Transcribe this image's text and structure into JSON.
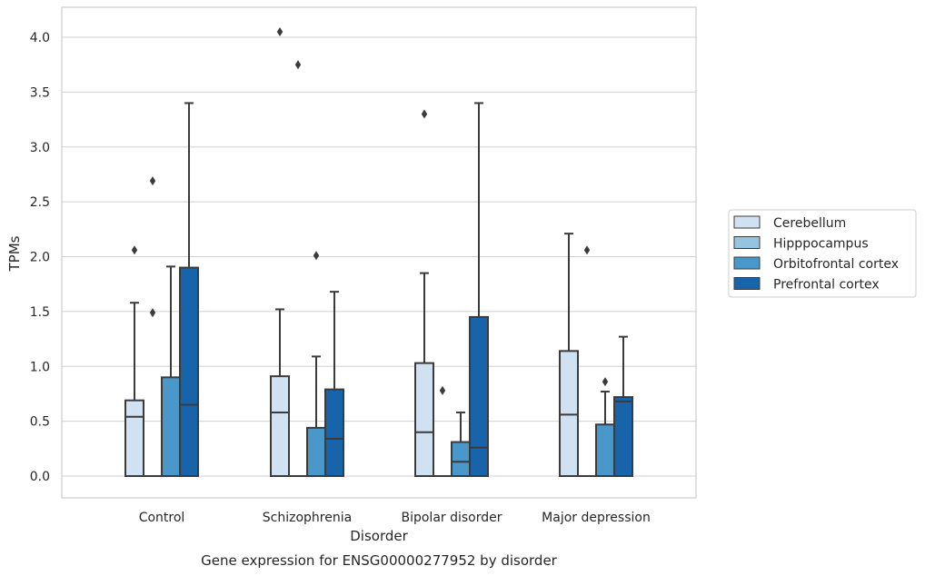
{
  "chart_data": {
    "type": "box",
    "xlabel": "Disorder",
    "ylabel": "TPMs",
    "caption": "Gene expression for ENSG00000277952 by disorder",
    "ylim": [
      -0.2,
      4.25
    ],
    "yticks": [
      "0.0",
      "0.5",
      "1.0",
      "1.5",
      "2.0",
      "2.5",
      "3.0",
      "3.5",
      "4.0"
    ],
    "grid": true,
    "legend_position": "right",
    "categories": [
      "Control",
      "Schizophrenia",
      "Bipolar disorder",
      "Major depression"
    ],
    "series": [
      {
        "name": "Cerebellum",
        "color": "#d0e1f2",
        "boxes": [
          {
            "whislo": 0.0,
            "q1": 0.0,
            "med": 0.54,
            "q3": 0.69,
            "whishi": 1.58,
            "fliers": [
              2.06
            ]
          },
          {
            "whislo": 0.0,
            "q1": 0.0,
            "med": 0.58,
            "q3": 0.91,
            "whishi": 1.52,
            "fliers": [
              4.05
            ]
          },
          {
            "whislo": 0.0,
            "q1": 0.0,
            "med": 0.4,
            "q3": 1.03,
            "whishi": 1.85,
            "fliers": [
              3.3
            ]
          },
          {
            "whislo": 0.0,
            "q1": 0.0,
            "med": 0.56,
            "q3": 1.14,
            "whishi": 2.21,
            "fliers": []
          }
        ]
      },
      {
        "name": "Hipppocampus",
        "color": "#94c4df",
        "boxes": [
          {
            "whislo": 0.0,
            "q1": 0.0,
            "med": 0.0,
            "q3": 0.0,
            "whishi": 0.0,
            "fliers": [
              2.69,
              1.49
            ]
          },
          {
            "whislo": 0.0,
            "q1": 0.0,
            "med": 0.0,
            "q3": 0.0,
            "whishi": 0.0,
            "fliers": [
              3.75
            ]
          },
          {
            "whislo": 0.0,
            "q1": 0.0,
            "med": 0.0,
            "q3": 0.0,
            "whishi": 0.0,
            "fliers": [
              0.78
            ]
          },
          {
            "whislo": 0.0,
            "q1": 0.0,
            "med": 0.0,
            "q3": 0.0,
            "whishi": 0.0,
            "fliers": [
              2.06
            ]
          }
        ]
      },
      {
        "name": "Orbitofrontal cortex",
        "color": "#4a98c9",
        "boxes": [
          {
            "whislo": 0.0,
            "q1": 0.0,
            "med": 0.0,
            "q3": 0.9,
            "whishi": 1.91,
            "fliers": []
          },
          {
            "whislo": 0.0,
            "q1": 0.0,
            "med": 0.0,
            "q3": 0.44,
            "whishi": 1.09,
            "fliers": [
              2.01
            ]
          },
          {
            "whislo": 0.0,
            "q1": 0.0,
            "med": 0.13,
            "q3": 0.31,
            "whishi": 0.58,
            "fliers": []
          },
          {
            "whislo": 0.0,
            "q1": 0.0,
            "med": 0.0,
            "q3": 0.47,
            "whishi": 0.77,
            "fliers": [
              0.86
            ]
          }
        ]
      },
      {
        "name": "Prefrontal cortex",
        "color": "#1764ab",
        "boxes": [
          {
            "whislo": 0.0,
            "q1": 0.0,
            "med": 0.65,
            "q3": 1.9,
            "whishi": 3.4,
            "fliers": []
          },
          {
            "whislo": 0.0,
            "q1": 0.0,
            "med": 0.34,
            "q3": 0.79,
            "whishi": 1.68,
            "fliers": []
          },
          {
            "whislo": 0.0,
            "q1": 0.0,
            "med": 0.26,
            "q3": 1.45,
            "whishi": 3.4,
            "fliers": []
          },
          {
            "whislo": 0.0,
            "q1": 0.0,
            "med": 0.68,
            "q3": 0.72,
            "whishi": 1.27,
            "fliers": []
          }
        ]
      }
    ]
  }
}
